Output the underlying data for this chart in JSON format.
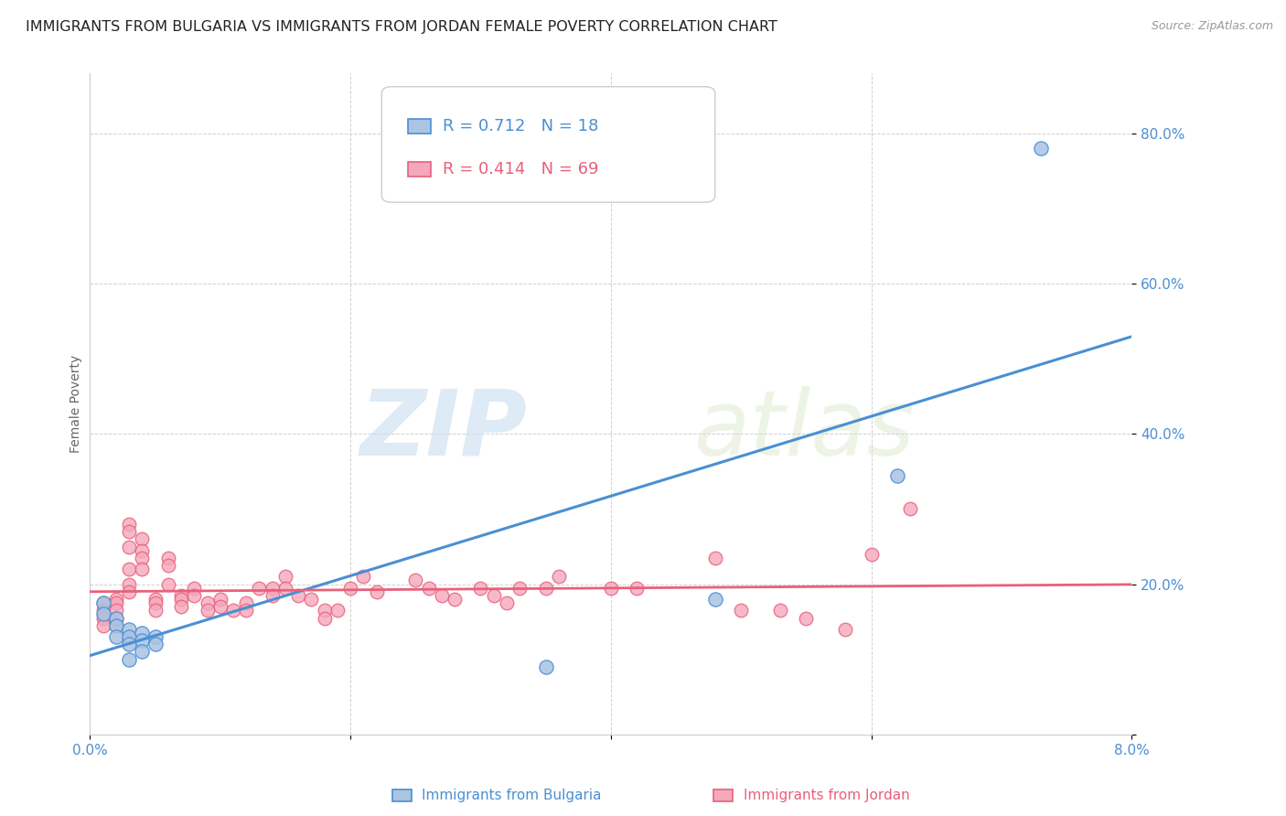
{
  "title": "IMMIGRANTS FROM BULGARIA VS IMMIGRANTS FROM JORDAN FEMALE POVERTY CORRELATION CHART",
  "source": "Source: ZipAtlas.com",
  "ylabel": "Female Poverty",
  "xlim": [
    0.0,
    0.08
  ],
  "ylim": [
    0.0,
    0.88
  ],
  "yticks": [
    0.0,
    0.2,
    0.4,
    0.6,
    0.8
  ],
  "xticks": [
    0.0,
    0.02,
    0.04,
    0.06,
    0.08
  ],
  "xtick_labels": [
    "0.0%",
    "",
    "",
    "",
    "8.0%"
  ],
  "ytick_labels": [
    "",
    "20.0%",
    "40.0%",
    "60.0%",
    "80.0%"
  ],
  "bulgaria_color": "#aac4e2",
  "jordan_color": "#f5a8bc",
  "line_bulgaria_color": "#4a8fd4",
  "line_jordan_color": "#e8607a",
  "bg_color": "#ffffff",
  "watermark_zip": "ZIP",
  "watermark_atlas": "atlas",
  "legend_R_bulgaria": "R = 0.712",
  "legend_N_bulgaria": "N = 18",
  "legend_R_jordan": "R = 0.414",
  "legend_N_jordan": "N = 69",
  "bulgaria_x": [
    0.001,
    0.001,
    0.002,
    0.002,
    0.002,
    0.003,
    0.003,
    0.003,
    0.003,
    0.004,
    0.004,
    0.004,
    0.005,
    0.005,
    0.035,
    0.048,
    0.062,
    0.073
  ],
  "bulgaria_y": [
    0.175,
    0.16,
    0.155,
    0.145,
    0.13,
    0.14,
    0.13,
    0.12,
    0.1,
    0.135,
    0.125,
    0.11,
    0.13,
    0.12,
    0.09,
    0.18,
    0.345,
    0.78
  ],
  "jordan_x": [
    0.001,
    0.001,
    0.001,
    0.001,
    0.002,
    0.002,
    0.002,
    0.002,
    0.002,
    0.003,
    0.003,
    0.003,
    0.003,
    0.003,
    0.003,
    0.004,
    0.004,
    0.004,
    0.004,
    0.005,
    0.005,
    0.005,
    0.006,
    0.006,
    0.006,
    0.007,
    0.007,
    0.007,
    0.008,
    0.008,
    0.009,
    0.009,
    0.01,
    0.01,
    0.011,
    0.012,
    0.012,
    0.013,
    0.014,
    0.014,
    0.015,
    0.015,
    0.016,
    0.017,
    0.018,
    0.018,
    0.019,
    0.02,
    0.021,
    0.022,
    0.025,
    0.026,
    0.027,
    0.028,
    0.03,
    0.031,
    0.032,
    0.033,
    0.035,
    0.036,
    0.04,
    0.042,
    0.048,
    0.05,
    0.053,
    0.055,
    0.058,
    0.06,
    0.063
  ],
  "jordan_y": [
    0.175,
    0.165,
    0.155,
    0.145,
    0.18,
    0.175,
    0.165,
    0.155,
    0.145,
    0.28,
    0.27,
    0.25,
    0.22,
    0.2,
    0.19,
    0.26,
    0.245,
    0.235,
    0.22,
    0.18,
    0.175,
    0.165,
    0.235,
    0.225,
    0.2,
    0.185,
    0.18,
    0.17,
    0.195,
    0.185,
    0.175,
    0.165,
    0.18,
    0.17,
    0.165,
    0.175,
    0.165,
    0.195,
    0.195,
    0.185,
    0.21,
    0.195,
    0.185,
    0.18,
    0.165,
    0.155,
    0.165,
    0.195,
    0.21,
    0.19,
    0.205,
    0.195,
    0.185,
    0.18,
    0.195,
    0.185,
    0.175,
    0.195,
    0.195,
    0.21,
    0.195,
    0.195,
    0.235,
    0.165,
    0.165,
    0.155,
    0.14,
    0.24,
    0.3
  ],
  "title_fontsize": 11.5,
  "axis_label_fontsize": 10,
  "tick_fontsize": 11,
  "tick_color": "#4a8fd4",
  "legend_fontsize": 13,
  "source_fontsize": 9
}
